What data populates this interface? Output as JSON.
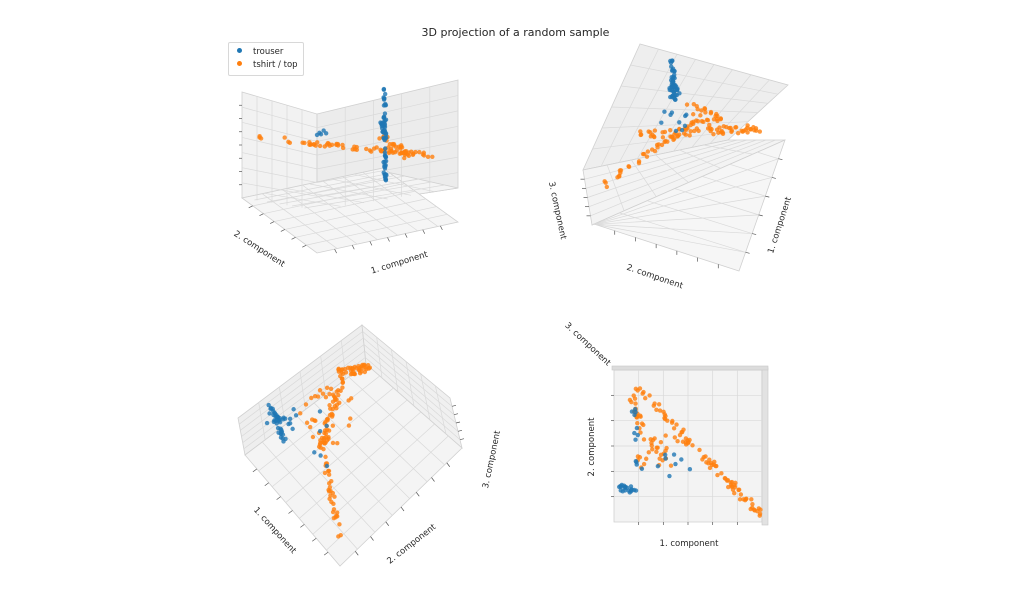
{
  "title": "3D projection of a random sample",
  "legend": [
    {
      "label": "trouser",
      "color": "#1f77b4"
    },
    {
      "label": "tshirt / top",
      "color": "#ff7f0e"
    }
  ],
  "chart_data": [
    {
      "type": "scatter",
      "view": "elev 20 / azim -60",
      "xlabel": "1. component",
      "ylabel": "2. component",
      "zlabel": "",
      "series": [
        "trouser",
        "tshirt / top"
      ]
    },
    {
      "type": "scatter",
      "view": "elev 50 / azim 20",
      "xlabel": "1. component",
      "ylabel": "2. component",
      "zlabel": "3. component",
      "series": [
        "trouser",
        "tshirt / top"
      ]
    },
    {
      "type": "scatter",
      "view": "elev 60 / azim 140",
      "xlabel": "1. component",
      "ylabel": "2. component",
      "zlabel": "3. component",
      "series": [
        "trouser",
        "tshirt / top"
      ]
    },
    {
      "type": "scatter",
      "view": "top-down (elev 90)",
      "xlabel": "1. component",
      "ylabel": "2. component",
      "zlabel": "3. component",
      "series": [
        "trouser",
        "tshirt / top"
      ]
    }
  ]
}
